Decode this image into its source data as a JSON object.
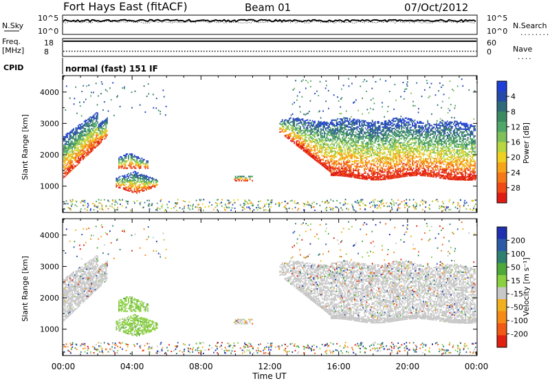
{
  "header": {
    "station": "Fort Hays East (fitACF)",
    "beam": "Beam 01",
    "date": "07/Oct/2012"
  },
  "noise_panel": {
    "left_label": "N.Sky",
    "left_ticks": [
      "10^5",
      "10^0"
    ],
    "right_ticks": [
      "10^5",
      "10^0"
    ],
    "right_label": "N.Search",
    "right_legend": "........",
    "noise_sky_level": 0.9,
    "noise_search_level": 0.9
  },
  "freq_panel": {
    "left_label_top": "Freq.",
    "left_label_bottom": "[MHz]",
    "left_ticks": [
      "18",
      "8"
    ],
    "right_ticks": [
      "60",
      "0"
    ],
    "right_label": "Nave",
    "right_legend": "....",
    "frequency_level": 0.88,
    "nave_level": 0.27
  },
  "cpid_panel": {
    "label": "CPID",
    "program": "normal (fast) 151 IF"
  },
  "chart_data": [
    {
      "type": "heatmap",
      "name": "power",
      "xlabel": "",
      "ylabel": "Slant Range [km]",
      "xlim": [
        0,
        24
      ],
      "ylim": [
        180,
        4500
      ],
      "yticks": [
        1000,
        2000,
        3000,
        4000
      ],
      "colorbar": {
        "label": "Power [dB]",
        "ticks": [
          "4",
          "8",
          "12",
          "16",
          "20",
          "24",
          "28"
        ],
        "bands": [
          "#1f3fd6",
          "#254aa8",
          "#2f6a7a",
          "#3b8a62",
          "#4fa86a",
          "#7fc05a",
          "#b8d640",
          "#f0d020",
          "#f6a41a",
          "#f57818",
          "#ef4a16",
          "#e01b14"
        ]
      }
    },
    {
      "type": "heatmap",
      "name": "velocity",
      "xlabel": "Time UT",
      "ylabel": "Slant Range [km]",
      "xlim": [
        0,
        24
      ],
      "ylim": [
        180,
        4500
      ],
      "yticks": [
        1000,
        2000,
        3000,
        4000
      ],
      "xticks": [
        "00:00",
        "04:00",
        "08:00",
        "12:00",
        "16:00",
        "20:00",
        "00:00"
      ],
      "colorbar": {
        "label": "Velocity [m s⁻¹]",
        "ticks": [
          "200",
          "100",
          "50",
          "15",
          "-15",
          "-50",
          "-100",
          "-200"
        ],
        "bands": [
          "#2030b0",
          "#2c5aa6",
          "#2f8070",
          "#4ea83a",
          "#8ad040",
          "#c8c8c8",
          "#f0b020",
          "#f58a16",
          "#f05a14",
          "#e02010"
        ]
      }
    }
  ]
}
